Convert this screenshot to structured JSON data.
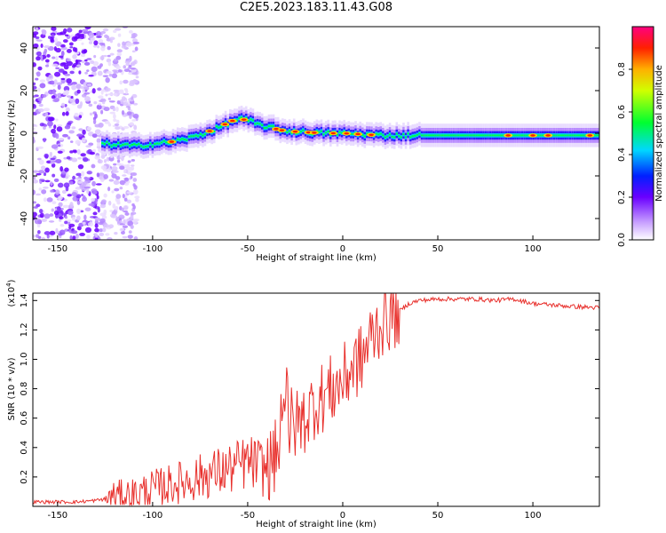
{
  "title": "C2E5.2023.183.11.43.G08",
  "chart_data": [
    {
      "type": "heatmap",
      "xlabel": "Height of straight line (km)",
      "ylabel": "Frequency (Hz)",
      "xlim": [
        -163,
        135
      ],
      "ylim": [
        -50,
        50
      ],
      "xticks": [
        "-150",
        "-100",
        "-50",
        "0",
        "50",
        "100"
      ],
      "yticks": [
        "-40",
        "-20",
        "0",
        "20",
        "40"
      ],
      "colorbar": {
        "label": "Normalized spectral amplitude",
        "range": [
          0,
          1
        ],
        "ticks": [
          "0.0",
          "0.2",
          "0.4",
          "0.6",
          "0.8"
        ],
        "colormap": "rainbow (white-violet-blue-cyan-green-yellow-red-magenta)"
      },
      "ridge": {
        "description": "frequency of peak spectral amplitude vs height",
        "x": [
          -125,
          -110,
          -100,
          -90,
          -80,
          -70,
          -60,
          -55,
          -50,
          -45,
          -40,
          -35,
          -30,
          -20,
          -10,
          0,
          10,
          20,
          40,
          60,
          80,
          100,
          120,
          135
        ],
        "y": [
          -5,
          -6,
          -5,
          -4,
          -2,
          1,
          5,
          7,
          6,
          4,
          3,
          2,
          1,
          0.5,
          0,
          0,
          -0.5,
          -1,
          -1,
          -1,
          -1,
          -1,
          -1,
          -1
        ]
      },
      "noise_region": [
        -163,
        -108
      ],
      "grid": false
    },
    {
      "type": "line",
      "xlabel": "Height of straight line (km)",
      "ylabel": "SNR (10 * v/v)",
      "yscale_label": "(x10",
      "yscale_exp": "4",
      "xlim": [
        -163,
        135
      ],
      "ylim": [
        0,
        1.45
      ],
      "xticks": [
        "-150",
        "-100",
        "-50",
        "0",
        "50",
        "100"
      ],
      "yticks": [
        "0.2",
        "0.4",
        "0.6",
        "0.8",
        "1.0",
        "1.2",
        "1.4"
      ],
      "series": [
        {
          "color": "#e8302c",
          "x": [
            -163,
            -150,
            -140,
            -130,
            -125,
            -120,
            -110,
            -100,
            -90,
            -80,
            -70,
            -60,
            -50,
            -45,
            -40,
            -35,
            -32,
            -30,
            -28,
            -25,
            -20,
            -15,
            -10,
            -5,
            0,
            5,
            10,
            15,
            20,
            25,
            30,
            35,
            40,
            50,
            60,
            70,
            80,
            90,
            100,
            110,
            120,
            135
          ],
          "values": [
            0.03,
            0.03,
            0.03,
            0.04,
            0.05,
            0.07,
            0.08,
            0.12,
            0.15,
            0.18,
            0.22,
            0.25,
            0.3,
            0.28,
            0.25,
            0.35,
            0.5,
            0.95,
            0.55,
            0.55,
            0.6,
            0.7,
            0.75,
            0.8,
            0.85,
            0.95,
            1.0,
            1.15,
            1.25,
            1.3,
            1.33,
            1.38,
            1.4,
            1.41,
            1.41,
            1.41,
            1.4,
            1.41,
            1.38,
            1.37,
            1.36,
            1.35
          ]
        }
      ],
      "grid": false
    }
  ]
}
